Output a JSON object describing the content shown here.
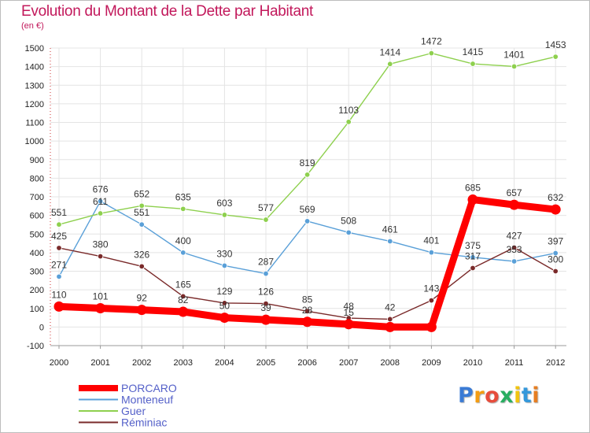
{
  "title": "Evolution du Montant de la Dette par Habitant",
  "unit_label": "(en €)",
  "logo": {
    "text": "Proxiti",
    "letter_colors": [
      "#3a7bd5",
      "#f39c12",
      "#e74c3c",
      "#27ae60",
      "#f1c40f",
      "#3498db",
      "#e67e22"
    ]
  },
  "chart_data": {
    "type": "line",
    "title": "Evolution du Montant de la Dette par Habitant",
    "ylabel": "(en €)",
    "xlabel": "",
    "x": [
      "2000",
      "2001",
      "2002",
      "2003",
      "2004",
      "2005",
      "2006",
      "2007",
      "2008",
      "2009",
      "2010",
      "2011",
      "2012"
    ],
    "ylim": [
      -100,
      1500
    ],
    "yticks": [
      -100,
      0,
      100,
      200,
      300,
      400,
      500,
      600,
      700,
      800,
      900,
      1000,
      1100,
      1200,
      1300,
      1400,
      1500
    ],
    "grid": true,
    "legend_position": "bottom-left",
    "series": [
      {
        "name": "PORCARO",
        "color": "#ff0000",
        "thick": true,
        "values": [
          110,
          101,
          92,
          82,
          50,
          39,
          28,
          15,
          0,
          0,
          685,
          657,
          632
        ],
        "labels": [
          "110",
          "101",
          "92",
          "82",
          "50",
          "39",
          "28",
          "15",
          "",
          "",
          "685",
          "657",
          "632"
        ]
      },
      {
        "name": "Monteneuf",
        "color": "#5aa0d8",
        "thick": false,
        "values": [
          271,
          676,
          551,
          400,
          330,
          287,
          569,
          508,
          461,
          401,
          375,
          353,
          397
        ],
        "labels": [
          "271",
          "676",
          "551",
          "400",
          "330",
          "287",
          "569",
          "508",
          "461",
          "401",
          "375",
          "353",
          "397"
        ]
      },
      {
        "name": "Guer",
        "color": "#8ed04e",
        "thick": false,
        "values": [
          551,
          611,
          652,
          635,
          603,
          577,
          819,
          1103,
          1414,
          1472,
          1415,
          1401,
          1453
        ],
        "labels": [
          "551",
          "611",
          "652",
          "635",
          "603",
          "577",
          "819",
          "1103",
          "1414",
          "1472",
          "1415",
          "1401",
          "1453"
        ]
      },
      {
        "name": "Réminiac",
        "color": "#7a2a2a",
        "thick": false,
        "values": [
          425,
          380,
          326,
          165,
          129,
          126,
          85,
          48,
          42,
          143,
          317,
          427,
          300
        ],
        "labels": [
          "425",
          "380",
          "326",
          "165",
          "129",
          "126",
          "85",
          "48",
          "42",
          "143",
          "317",
          "427",
          "300"
        ]
      }
    ]
  }
}
